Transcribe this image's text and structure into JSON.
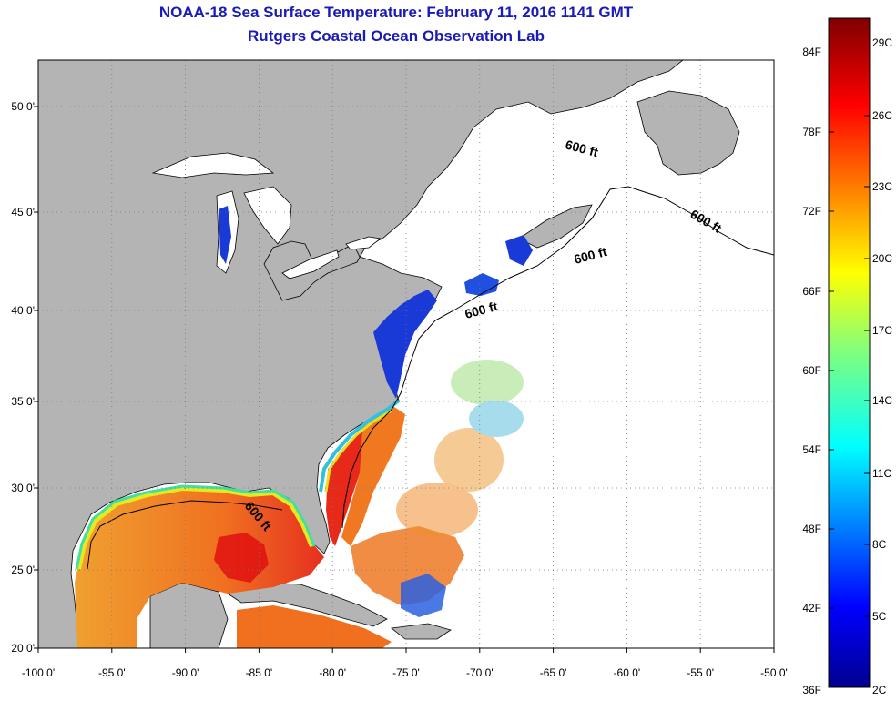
{
  "title": "NOAA-18 Sea Surface Temperature:  February 11, 2016 1141 GMT",
  "subtitle": "Rutgers Coastal Ocean Observation Lab",
  "axes": {
    "lon_ticks": [
      "-100 0'",
      "-95 0'",
      "-90 0'",
      "-85 0'",
      "-80 0'",
      "-75 0'",
      "-70 0'",
      "-65 0'",
      "-60 0'",
      "-55 0'",
      "-50 0'"
    ],
    "lat_ticks": [
      "50 0'",
      "45 0'",
      "40 0'",
      "35 0'",
      "30 0'",
      "25 0'",
      "20 0'"
    ]
  },
  "colorbar": {
    "f_labels": [
      "84F",
      "78F",
      "72F",
      "66F",
      "60F",
      "54F",
      "48F",
      "42F",
      "36F"
    ],
    "c_labels": [
      "29C",
      "26C",
      "23C",
      "20C",
      "17C",
      "14C",
      "11C",
      "8C",
      "5C",
      "2C"
    ]
  },
  "contour_labels": [
    "600 ft",
    "600 ft",
    "600 ft",
    "600 ft",
    "600 ft"
  ],
  "colors": {
    "land": "#b4b4b4",
    "title": "#1a1ab8",
    "warm": "#e01010",
    "cool": "#1a3ad8"
  }
}
